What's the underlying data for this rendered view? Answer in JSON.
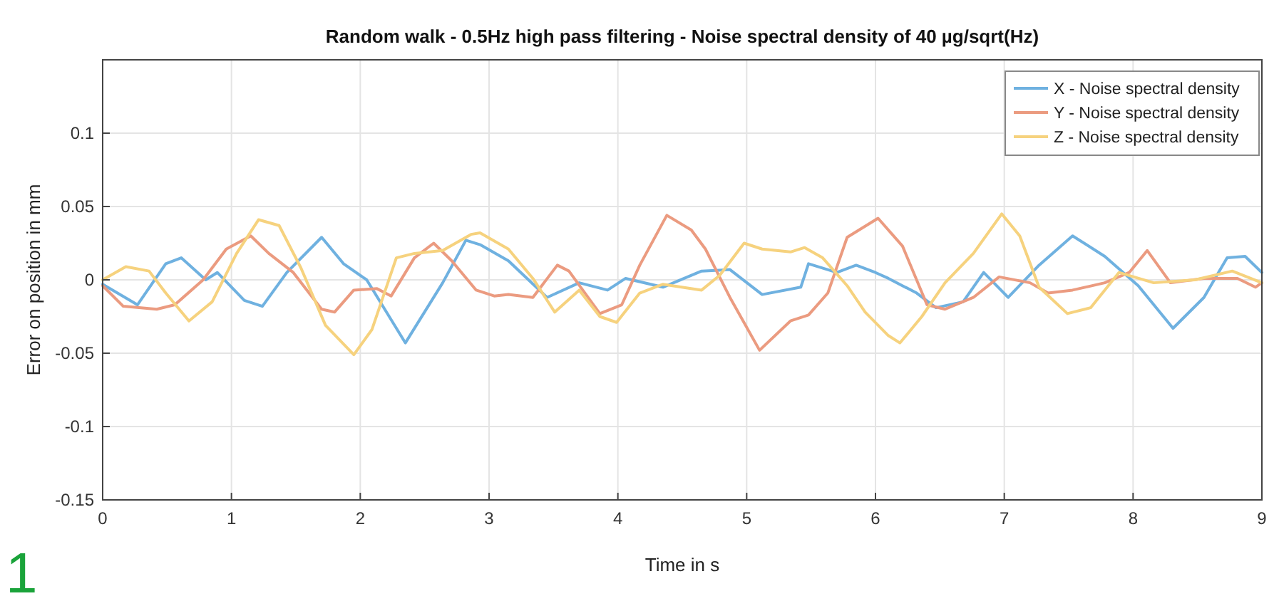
{
  "chart_data": {
    "type": "line",
    "title": "Random walk - 0.5Hz high pass filtering - Noise spectral density of 40 µg/sqrt(Hz)",
    "xlabel": "Time in s",
    "ylabel": "Error on position in mm",
    "annotations": [
      "1"
    ],
    "xlim": [
      0,
      9
    ],
    "xticks": [
      0,
      1,
      2,
      3,
      4,
      5,
      6,
      7,
      8,
      9
    ],
    "ylim": [
      -0.15,
      0.15
    ],
    "yticks": [
      -0.15,
      -0.1,
      -0.05,
      0,
      0.05,
      0.1
    ],
    "grid": true,
    "legend": "top right",
    "marker": "none",
    "line_style": "solid",
    "series": [
      {
        "name": "X - Noise spectral density",
        "color": "#6fb1e0",
        "x": [
          0,
          0.27,
          0.49,
          0.61,
          0.8,
          0.89,
          1.1,
          1.24,
          1.43,
          1.7,
          1.87,
          2.05,
          2.35,
          2.64,
          2.82,
          2.93,
          3.15,
          3.45,
          3.7,
          3.92,
          4.06,
          4.35,
          4.65,
          4.87,
          5.12,
          5.42,
          5.48,
          5.7,
          5.85,
          6.0,
          6.1,
          6.32,
          6.47,
          6.68,
          6.84,
          7.03,
          7.27,
          7.53,
          7.78,
          8.04,
          8.31,
          8.55,
          8.73,
          8.87,
          9.0
        ],
        "values": [
          -0.003,
          -0.017,
          0.011,
          0.015,
          0,
          0.005,
          -0.014,
          -0.018,
          0.005,
          0.029,
          0.011,
          0,
          -0.043,
          -0.002,
          0.027,
          0.024,
          0.013,
          -0.012,
          -0.002,
          -0.007,
          0.001,
          -0.005,
          0.006,
          0.007,
          -0.01,
          -0.005,
          0.011,
          0.005,
          0.01,
          0.005,
          0.001,
          -0.009,
          -0.019,
          -0.015,
          0.005,
          -0.012,
          0.01,
          0.03,
          0.016,
          -0.004,
          -0.033,
          -0.012,
          0.015,
          0.016,
          0.005
        ]
      },
      {
        "name": "Y - Noise spectral density",
        "color": "#eb9b80",
        "x": [
          0,
          0.16,
          0.42,
          0.56,
          0.78,
          0.96,
          1.15,
          1.29,
          1.48,
          1.7,
          1.8,
          1.95,
          2.13,
          2.24,
          2.42,
          2.57,
          2.71,
          2.9,
          3.04,
          3.15,
          3.34,
          3.53,
          3.62,
          3.86,
          4.03,
          4.17,
          4.38,
          4.57,
          4.68,
          4.87,
          5.1,
          5.34,
          5.48,
          5.63,
          5.78,
          6.02,
          6.21,
          6.4,
          6.54,
          6.76,
          6.96,
          7.2,
          7.34,
          7.53,
          7.78,
          7.97,
          8.11,
          8.29,
          8.55,
          8.81,
          8.95,
          9.0
        ],
        "values": [
          -0.004,
          -0.018,
          -0.02,
          -0.017,
          0,
          0.021,
          0.03,
          0.018,
          0.005,
          -0.02,
          -0.022,
          -0.007,
          -0.006,
          -0.011,
          0.015,
          0.025,
          0.013,
          -0.007,
          -0.011,
          -0.01,
          -0.012,
          0.01,
          0.006,
          -0.023,
          -0.017,
          0.01,
          0.044,
          0.034,
          0.021,
          -0.012,
          -0.048,
          -0.028,
          -0.024,
          -0.009,
          0.029,
          0.042,
          0.023,
          -0.017,
          -0.02,
          -0.012,
          0.002,
          -0.002,
          -0.009,
          -0.007,
          -0.002,
          0.005,
          0.02,
          -0.002,
          0.001,
          0.001,
          -0.005,
          -0.002
        ]
      },
      {
        "name": "Z - Noise spectral density",
        "color": "#f6d27e",
        "x": [
          0,
          0.18,
          0.36,
          0.49,
          0.67,
          0.85,
          1.04,
          1.21,
          1.37,
          1.54,
          1.73,
          1.95,
          2.09,
          2.28,
          2.42,
          2.64,
          2.86,
          2.93,
          3.15,
          3.34,
          3.51,
          3.7,
          3.86,
          3.99,
          4.17,
          4.35,
          4.65,
          4.79,
          4.98,
          5.12,
          5.34,
          5.45,
          5.59,
          5.78,
          5.92,
          6.1,
          6.19,
          6.36,
          6.54,
          6.76,
          6.98,
          7.12,
          7.27,
          7.49,
          7.67,
          7.89,
          8.16,
          8.48,
          8.77,
          9.0
        ],
        "values": [
          0,
          0.009,
          0.006,
          -0.009,
          -0.028,
          -0.015,
          0.018,
          0.041,
          0.037,
          0.008,
          -0.031,
          -0.051,
          -0.034,
          0.015,
          0.018,
          0.02,
          0.031,
          0.032,
          0.021,
          0.001,
          -0.022,
          -0.007,
          -0.025,
          -0.029,
          -0.009,
          -0.003,
          -0.007,
          0.003,
          0.025,
          0.021,
          0.019,
          0.022,
          0.015,
          -0.004,
          -0.022,
          -0.038,
          -0.043,
          -0.025,
          -0.002,
          0.018,
          0.045,
          0.03,
          -0.005,
          -0.023,
          -0.019,
          0.005,
          -0.002,
          0,
          0.006,
          -0.002
        ]
      }
    ]
  }
}
